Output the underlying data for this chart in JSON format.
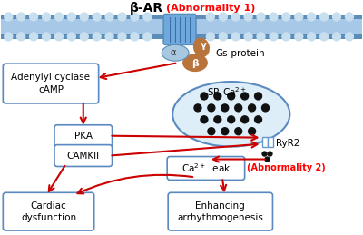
{
  "title": "β-AR",
  "abnormality1_text": "(Abnormality 1)",
  "abnormality2_text": "(Abnormality 2)",
  "bg_color": "#ffffff",
  "membrane_color_dark": "#5b8db8",
  "membrane_color_light": "#a8c8e8",
  "membrane_dot_color": "#c8dff0",
  "box_edge_color": "#5a8abf",
  "box_face_color": "#ffffff",
  "arrow_color": "#cc0000",
  "text_color": "#000000",
  "red_color": "#ff0000",
  "gs_brown_color": "#b8743a",
  "alpha_color": "#a8c8e0",
  "sr_fill_color": "#ddeef8",
  "sr_edge_color": "#5a8abf",
  "sr_dot_color": "#111111",
  "ryr2_fill": "#6699cc",
  "receptor_color": "#6fa8dc"
}
